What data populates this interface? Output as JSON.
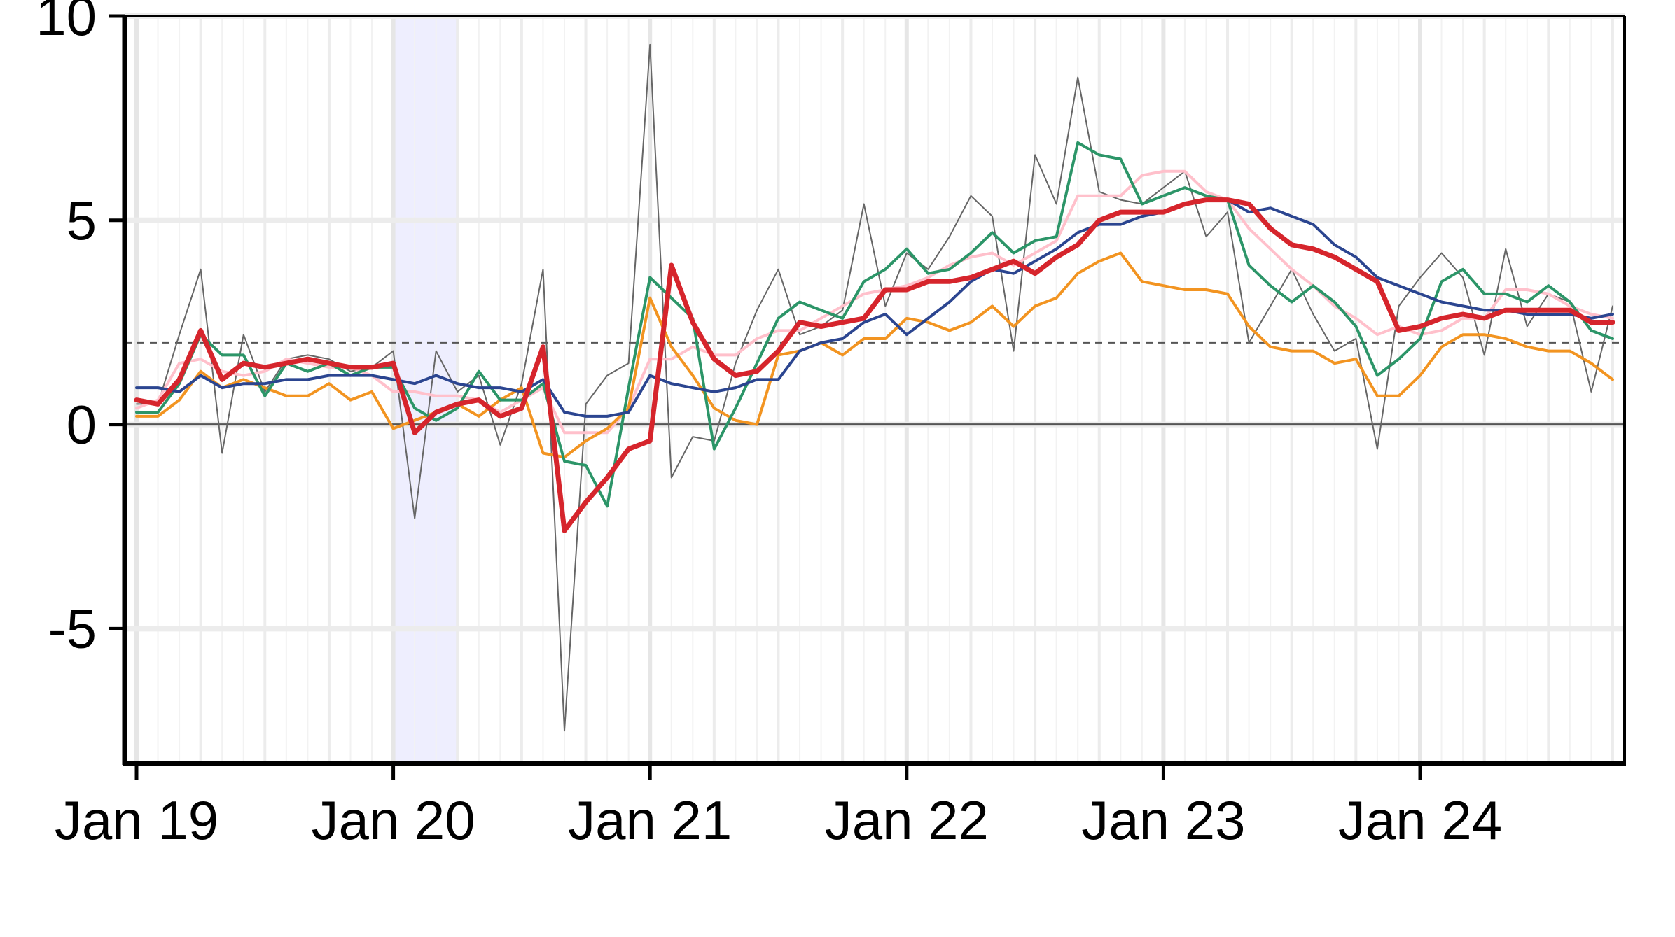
{
  "chart_data": {
    "type": "line",
    "title": "",
    "xlabel": "",
    "ylabel": "",
    "x_start": "Jan 19",
    "x_frequency": "monthly",
    "x_tick_labels": [
      "Jan 19",
      "Jan 20",
      "Jan 21",
      "Jan 22",
      "Jan 23",
      "Jan 24"
    ],
    "y_tick_labels": [
      "10",
      "5",
      "0",
      "-5"
    ],
    "y_ticks": [
      10,
      5,
      0,
      -5
    ],
    "ylim": [
      -8.3,
      10
    ],
    "grid": true,
    "reference_lines": [
      {
        "y": 2,
        "style": "dashed",
        "color": "#555555"
      },
      {
        "y": 0,
        "style": "solid",
        "color": "#555555"
      }
    ],
    "shaded_period": {
      "from": "Jan 20",
      "to": "Apr 20",
      "color": "#eeeefe"
    },
    "series": [
      {
        "color": "#666666",
        "width": 2,
        "values": [
          0.5,
          0.5,
          2.2,
          3.8,
          -0.7,
          2.2,
          0.8,
          1.6,
          1.7,
          1.6,
          1.3,
          1.4,
          1.8,
          -2.3,
          1.8,
          0.8,
          1.2,
          -0.5,
          1.0,
          3.8,
          -7.5,
          0.5,
          1.2,
          1.5,
          9.3,
          -1.3,
          -0.3,
          -0.4,
          1.5,
          2.8,
          3.8,
          2.2,
          2.4,
          2.8,
          5.4,
          2.9,
          4.2,
          3.8,
          4.6,
          5.6,
          5.1,
          1.8,
          6.6,
          5.4,
          8.5,
          5.7,
          5.5,
          5.4,
          5.8,
          6.2,
          4.6,
          5.2,
          2.0,
          2.9,
          3.8,
          2.7,
          1.8,
          2.1,
          -0.6,
          2.9,
          3.6,
          4.2,
          3.6,
          1.7,
          4.3,
          2.4,
          3.2,
          3.0,
          0.8,
          2.9
        ]
      },
      {
        "color": "#ffc0cb",
        "width": 4,
        "values": [
          0.4,
          0.6,
          1.5,
          1.6,
          1.3,
          1.2,
          1.3,
          1.6,
          1.5,
          1.4,
          1.4,
          1.2,
          0.8,
          0.8,
          0.7,
          0.7,
          0.6,
          0.3,
          0.6,
          0.9,
          -0.2,
          -0.2,
          -0.2,
          0.4,
          1.6,
          1.6,
          1.9,
          1.7,
          1.7,
          2.1,
          2.3,
          2.3,
          2.6,
          2.9,
          3.2,
          3.3,
          3.4,
          3.6,
          3.9,
          4.1,
          4.2,
          3.9,
          4.2,
          4.5,
          5.6,
          5.6,
          5.6,
          6.1,
          6.2,
          6.2,
          5.7,
          5.5,
          4.8,
          4.3,
          3.8,
          3.4,
          2.9,
          2.6,
          2.2,
          2.4,
          2.2,
          2.3,
          2.6,
          2.6,
          3.3,
          3.3,
          3.2,
          2.9,
          2.7,
          2.6
        ]
      },
      {
        "color": "#f29421",
        "width": 4,
        "values": [
          0.2,
          0.2,
          0.6,
          1.3,
          0.9,
          1.1,
          0.9,
          0.7,
          0.7,
          1.0,
          0.6,
          0.8,
          -0.1,
          0.1,
          0.3,
          0.5,
          0.2,
          0.6,
          0.9,
          -0.7,
          -0.8,
          -0.4,
          -0.1,
          0.4,
          3.1,
          1.9,
          1.2,
          0.4,
          0.1,
          0.0,
          1.7,
          1.8,
          2.0,
          1.7,
          2.1,
          2.1,
          2.6,
          2.5,
          2.3,
          2.5,
          2.9,
          2.4,
          2.9,
          3.1,
          3.7,
          4.0,
          4.2,
          3.5,
          3.4,
          3.3,
          3.3,
          3.2,
          2.4,
          1.9,
          1.8,
          1.8,
          1.5,
          1.6,
          0.7,
          0.7,
          1.2,
          1.9,
          2.2,
          2.2,
          2.1,
          1.9,
          1.8,
          1.8,
          1.5,
          1.1
        ]
      },
      {
        "color": "#2c9568",
        "width": 4,
        "values": [
          0.3,
          0.3,
          1.0,
          2.2,
          1.7,
          1.7,
          0.7,
          1.5,
          1.3,
          1.5,
          1.2,
          1.4,
          1.4,
          0.4,
          0.1,
          0.4,
          1.3,
          0.6,
          0.6,
          1.0,
          -0.9,
          -1.0,
          -2.0,
          0.9,
          3.6,
          3.1,
          2.6,
          -0.6,
          0.4,
          1.5,
          2.6,
          3.0,
          2.8,
          2.6,
          3.5,
          3.8,
          4.3,
          3.7,
          3.8,
          4.2,
          4.7,
          4.2,
          4.5,
          4.6,
          6.9,
          6.6,
          6.5,
          5.4,
          5.6,
          5.8,
          5.6,
          5.5,
          3.9,
          3.4,
          3.0,
          3.4,
          3.0,
          2.4,
          1.2,
          1.6,
          2.1,
          3.5,
          3.8,
          3.2,
          3.2,
          3.0,
          3.4,
          3.0,
          2.3,
          2.1
        ]
      },
      {
        "color": "#2b4590",
        "width": 4,
        "values": [
          0.9,
          0.9,
          0.8,
          1.2,
          0.9,
          1.0,
          1.0,
          1.1,
          1.1,
          1.2,
          1.2,
          1.2,
          1.1,
          1.0,
          1.2,
          1.0,
          0.9,
          0.9,
          0.8,
          1.1,
          0.3,
          0.2,
          0.2,
          0.3,
          1.2,
          1.0,
          0.9,
          0.8,
          0.9,
          1.1,
          1.1,
          1.8,
          2.0,
          2.1,
          2.5,
          2.7,
          2.2,
          2.6,
          3.0,
          3.5,
          3.8,
          3.7,
          4.0,
          4.3,
          4.7,
          4.9,
          4.9,
          5.1,
          5.2,
          5.4,
          5.5,
          5.5,
          5.2,
          5.3,
          5.1,
          4.9,
          4.4,
          4.1,
          3.6,
          3.4,
          3.2,
          3.0,
          2.9,
          2.8,
          2.8,
          2.7,
          2.7,
          2.7,
          2.6,
          2.7
        ]
      },
      {
        "color": "#d6252c",
        "width": 7,
        "values": [
          0.6,
          0.5,
          1.1,
          2.3,
          1.1,
          1.5,
          1.4,
          1.5,
          1.6,
          1.5,
          1.4,
          1.4,
          1.5,
          -0.2,
          0.3,
          0.5,
          0.6,
          0.2,
          0.4,
          1.9,
          -2.6,
          -1.9,
          -1.3,
          -0.6,
          -0.4,
          3.9,
          2.5,
          1.6,
          1.2,
          1.3,
          1.8,
          2.5,
          2.4,
          2.5,
          2.6,
          3.3,
          3.3,
          3.5,
          3.5,
          3.6,
          3.8,
          4.0,
          3.7,
          4.1,
          4.4,
          5.0,
          5.2,
          5.2,
          5.2,
          5.4,
          5.5,
          5.5,
          5.4,
          4.8,
          4.4,
          4.3,
          4.1,
          3.8,
          3.5,
          2.3,
          2.4,
          2.6,
          2.7,
          2.6,
          2.8,
          2.8,
          2.8,
          2.8,
          2.5,
          2.5
        ]
      }
    ]
  }
}
